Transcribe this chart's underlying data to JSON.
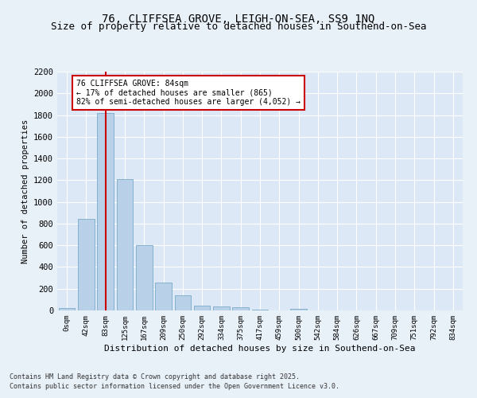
{
  "title1": "76, CLIFFSEA GROVE, LEIGH-ON-SEA, SS9 1NQ",
  "title2": "Size of property relative to detached houses in Southend-on-Sea",
  "xlabel": "Distribution of detached houses by size in Southend-on-Sea",
  "ylabel": "Number of detached properties",
  "bar_labels": [
    "0sqm",
    "42sqm",
    "83sqm",
    "125sqm",
    "167sqm",
    "209sqm",
    "250sqm",
    "292sqm",
    "334sqm",
    "375sqm",
    "417sqm",
    "459sqm",
    "500sqm",
    "542sqm",
    "584sqm",
    "626sqm",
    "667sqm",
    "709sqm",
    "751sqm",
    "792sqm",
    "834sqm"
  ],
  "bar_values": [
    20,
    840,
    1820,
    1210,
    600,
    255,
    140,
    45,
    38,
    28,
    10,
    0,
    12,
    0,
    0,
    0,
    0,
    0,
    0,
    0,
    0
  ],
  "bar_color": "#b8d0e8",
  "bar_edge_color": "#7aaac8",
  "vline_x": 2,
  "vline_color": "#cc0000",
  "annotation_text": "76 CLIFFSEA GROVE: 84sqm\n← 17% of detached houses are smaller (865)\n82% of semi-detached houses are larger (4,052) →",
  "annotation_box_color": "#cc0000",
  "ylim": [
    0,
    2200
  ],
  "yticks": [
    0,
    200,
    400,
    600,
    800,
    1000,
    1200,
    1400,
    1600,
    1800,
    2000,
    2200
  ],
  "footnote1": "Contains HM Land Registry data © Crown copyright and database right 2025.",
  "footnote2": "Contains public sector information licensed under the Open Government Licence v3.0.",
  "bg_color": "#dce8f5",
  "fig_bg_color": "#e8f0f8",
  "title1_fontsize": 10,
  "title2_fontsize": 9
}
